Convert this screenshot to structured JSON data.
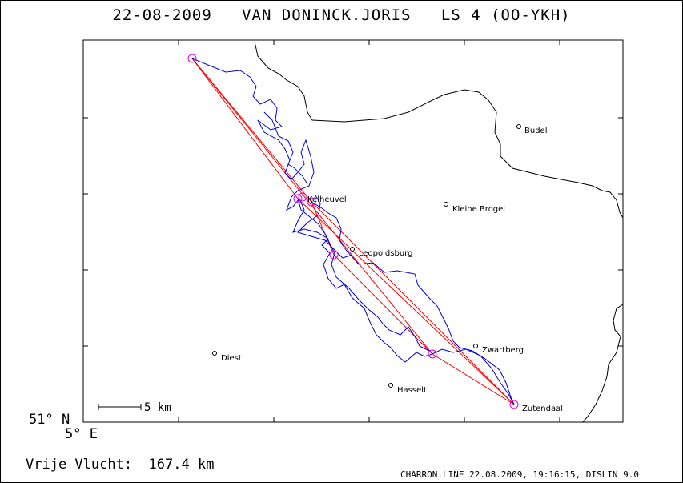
{
  "title": {
    "date": "22-08-2009",
    "pilot": "VAN DONINCK.JORIS",
    "glider": "LS 4 (OO-YKH)"
  },
  "axes": {
    "lat_label": "51° N",
    "lon_label": "5° E"
  },
  "scale_bar": {
    "label": "5 km"
  },
  "distance": {
    "label": "Vrije Vlucht:",
    "value": "167.4 km"
  },
  "footer": "CHARRON.LINE 22.08.2009, 19:16:15, DISLIN 9.0",
  "towns": [
    {
      "name": "Budel"
    },
    {
      "name": "Kleine Brogel"
    },
    {
      "name": "Kelheuvel"
    },
    {
      "name": "Leopoldsburg"
    },
    {
      "name": "Zwartberg"
    },
    {
      "name": "Diest"
    },
    {
      "name": "Hasselt"
    },
    {
      "name": "Zutendaal"
    }
  ],
  "colors": {
    "track": "#0000e0",
    "task": "#ff0000",
    "turnpoint": "#e000e0",
    "border": "#000000"
  }
}
